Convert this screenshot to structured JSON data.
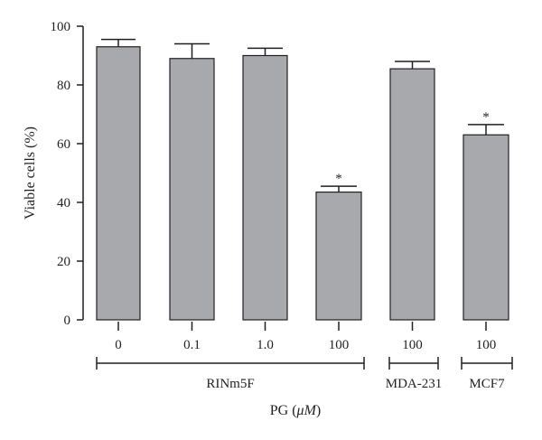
{
  "chart_data": {
    "type": "bar",
    "ylabel": "Viable cells (%)",
    "xlabel_prefix": "PG (",
    "xlabel_unit": "μM",
    "xlabel_suffix": ")",
    "ylim": [
      0,
      100
    ],
    "yticks": [
      0,
      20,
      40,
      60,
      80,
      100
    ],
    "categories": [
      "0",
      "0.1",
      "1.0",
      "100",
      "100",
      "100"
    ],
    "values": [
      93,
      89,
      90,
      43.5,
      85.5,
      63
    ],
    "errors": [
      2.5,
      5,
      2.5,
      2,
      2.5,
      3.5
    ],
    "significance": [
      "",
      "",
      "",
      "*",
      "",
      "*"
    ],
    "groups": [
      {
        "label": "RINm5F",
        "from": 0,
        "to": 3
      },
      {
        "label": "MDA-231",
        "from": 4,
        "to": 4
      },
      {
        "label": "MCF7",
        "from": 5,
        "to": 5
      }
    ],
    "colors": {
      "bar": "#a7a9ac",
      "stroke": "#231f20"
    },
    "grid": false,
    "legend": "none"
  }
}
